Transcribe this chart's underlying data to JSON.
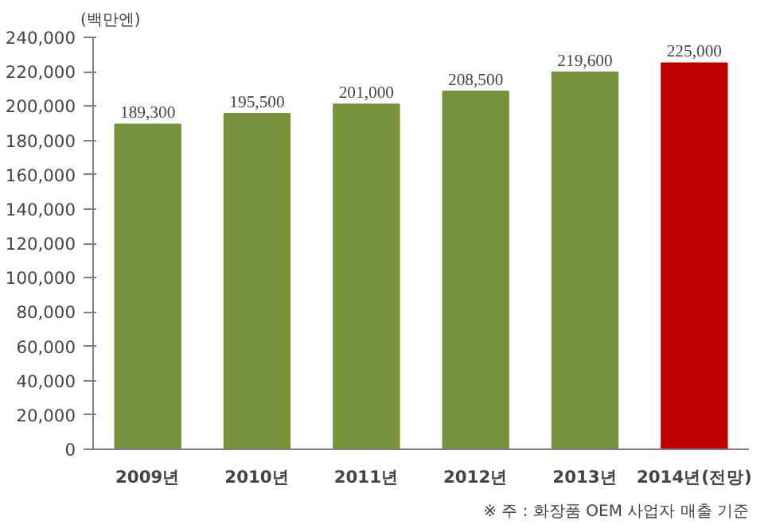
{
  "chart_data": {
    "type": "bar",
    "ylabel": "(백만엔)",
    "categories": [
      "2009년",
      "2010년",
      "2011년",
      "2012년",
      "2013년",
      "2014년(전망)"
    ],
    "values": [
      189300,
      195500,
      201000,
      208500,
      219600,
      225000
    ],
    "colors": [
      "#77933c",
      "#77933c",
      "#77933c",
      "#77933c",
      "#77933c",
      "#c00000"
    ],
    "ylim": [
      0,
      240000
    ],
    "yticks": [
      {
        "value": 0,
        "label": "0"
      },
      {
        "value": 20000,
        "label": "20,000"
      },
      {
        "value": 40000,
        "label": "40,000"
      },
      {
        "value": 60000,
        "label": "60,000"
      },
      {
        "value": 80000,
        "label": "80,000"
      },
      {
        "value": 100000,
        "label": "100,000"
      },
      {
        "value": 120000,
        "label": "120,000"
      },
      {
        "value": 140000,
        "label": "140,000"
      },
      {
        "value": 160000,
        "label": "160,000"
      },
      {
        "value": 180000,
        "label": "180,000"
      },
      {
        "value": 200000,
        "label": "200,000"
      },
      {
        "value": 220000,
        "label": "220,000"
      },
      {
        "value": 240000,
        "label": "240,000"
      }
    ],
    "value_labels": [
      "189,300",
      "195,500",
      "201,000",
      "208,500",
      "219,600",
      "225,000"
    ],
    "grid": false,
    "annotations": [
      "※ 주 : 화장품 OEM 사업자 매출 기준"
    ]
  }
}
